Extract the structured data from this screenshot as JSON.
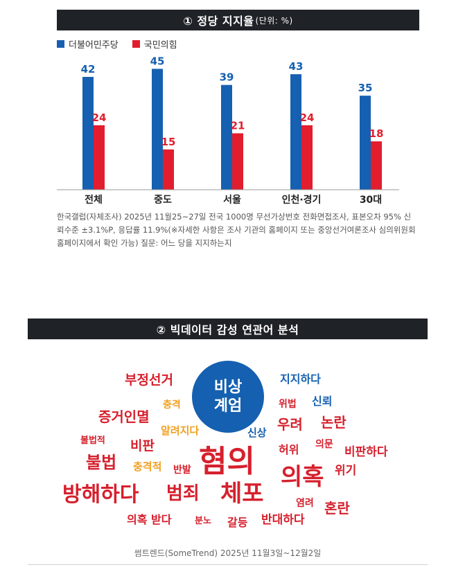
{
  "section1": {
    "title": "① 정당 지지율",
    "unit": "(단위: %)",
    "legend": [
      {
        "label": "더불어민주당",
        "color": "#1560b0"
      },
      {
        "label": "국민의힘",
        "color": "#e21d2e"
      }
    ],
    "note": "한국갤럽(자체조사) 2025년 11월25~27일 전국 1000명 무선가상번호 전화면접조사, 표본오차 95% 신뢰수준 ±3.1%P, 응답률 11.9%(※자세한 사항은 조사 기관의 홈페이지 또는 중앙선거여론조사 심의위원회 홈페이지에서 확인 가능) 질문: 어느 당을 지지하는지"
  },
  "chart_data": {
    "type": "bar",
    "categories": [
      "전체",
      "중도",
      "서울",
      "인천·경기",
      "30대"
    ],
    "series": [
      {
        "name": "더불어민주당",
        "values": [
          42,
          45,
          39,
          43,
          35
        ],
        "color": "#1560b0"
      },
      {
        "name": "국민의힘",
        "values": [
          24,
          15,
          21,
          24,
          18
        ],
        "color": "#e21d2e"
      }
    ],
    "title": "① 정당 지지율",
    "ylabel": "",
    "xlabel": "",
    "ylim": [
      0,
      50
    ],
    "grid": false,
    "legend_position": "top-left"
  },
  "section2": {
    "title": "② 빅데이터 감성 연관어 분석",
    "center_word": "비상 계엄",
    "center_lines": [
      "비상",
      "계엄"
    ],
    "source": "썸트렌드(SomeTrend) 2025년 11월3일~12월2일",
    "colors": {
      "negative": "#d6202d",
      "positive": "#1560b0",
      "neutral": "#f0a020"
    },
    "words": [
      {
        "text": "부정선거",
        "color": "#d6202d"
      },
      {
        "text": "지지하다",
        "color": "#1560b0"
      },
      {
        "text": "충격",
        "color": "#f0a020"
      },
      {
        "text": "위법",
        "color": "#d6202d"
      },
      {
        "text": "신뢰",
        "color": "#1560b0"
      },
      {
        "text": "증거인멸",
        "color": "#d6202d"
      },
      {
        "text": "우려",
        "color": "#d6202d"
      },
      {
        "text": "논란",
        "color": "#d6202d"
      },
      {
        "text": "알려지다",
        "color": "#f0a020"
      },
      {
        "text": "신상",
        "color": "#1560b0"
      },
      {
        "text": "불법적",
        "color": "#d6202d"
      },
      {
        "text": "비판",
        "color": "#d6202d"
      },
      {
        "text": "허위",
        "color": "#d6202d"
      },
      {
        "text": "의문",
        "color": "#d6202d"
      },
      {
        "text": "비판하다",
        "color": "#d6202d"
      },
      {
        "text": "불법",
        "color": "#d6202d"
      },
      {
        "text": "충격적",
        "color": "#f0a020"
      },
      {
        "text": "반발",
        "color": "#d6202d"
      },
      {
        "text": "혐의",
        "color": "#d6202d"
      },
      {
        "text": "의혹",
        "color": "#d6202d"
      },
      {
        "text": "위기",
        "color": "#d6202d"
      },
      {
        "text": "방해하다",
        "color": "#d6202d"
      },
      {
        "text": "범죄",
        "color": "#d6202d"
      },
      {
        "text": "체포",
        "color": "#d6202d"
      },
      {
        "text": "염려",
        "color": "#d6202d"
      },
      {
        "text": "혼란",
        "color": "#d6202d"
      },
      {
        "text": "의혹 받다",
        "color": "#d6202d"
      },
      {
        "text": "분노",
        "color": "#d6202d"
      },
      {
        "text": "갈등",
        "color": "#d6202d"
      },
      {
        "text": "반대하다",
        "color": "#d6202d"
      }
    ]
  }
}
